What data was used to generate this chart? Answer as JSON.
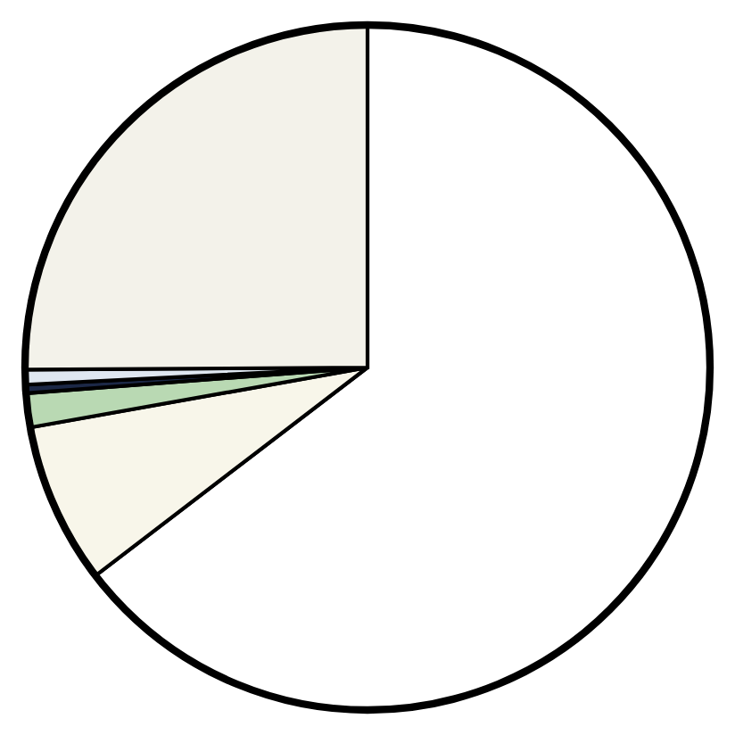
{
  "chart_data": {
    "type": "pie",
    "categories": [
      null,
      null,
      null,
      null,
      null,
      null
    ],
    "values": [
      64.6,
      7.6,
      1.6,
      0.4,
      0.7,
      25.1
    ],
    "colors": [
      "#ffffff",
      "#f8f6ea",
      "#b9d9b3",
      "#1c2846",
      "#dfe7f1",
      "#f3f2ea"
    ]
  }
}
